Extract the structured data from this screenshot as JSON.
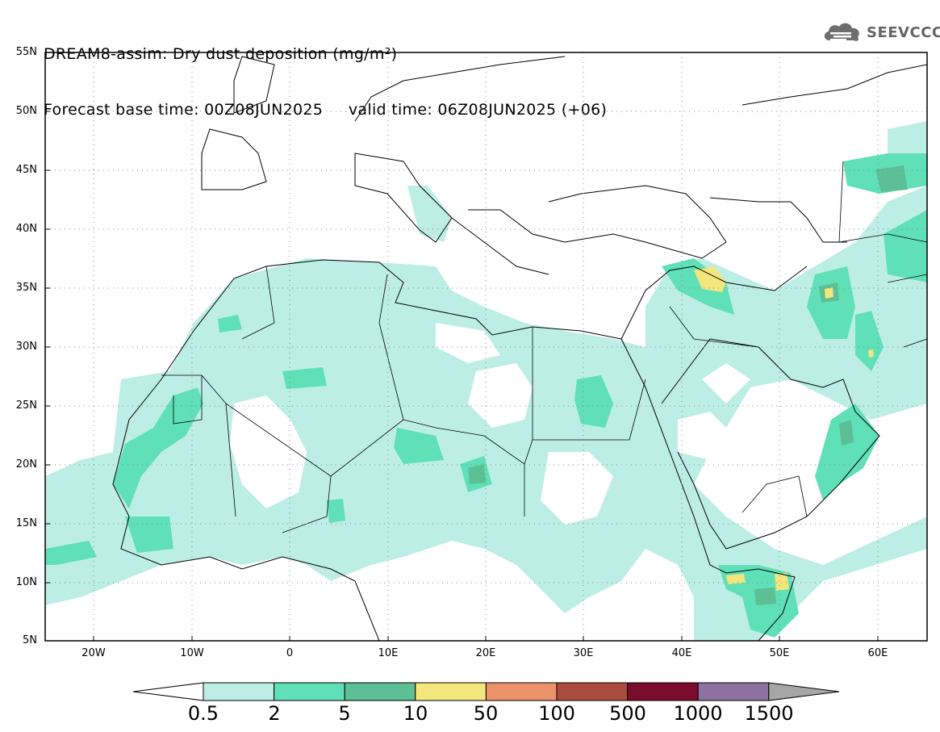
{
  "title": {
    "line1": "DREAM8-assim: Dry dust deposition (mg/m²)",
    "line2": "Forecast base time: 00Z08JUN2025     valid time: 06Z08JUN2025 (+06)"
  },
  "logo": {
    "text": "SEEVCCC",
    "icon": "cloud-icon"
  },
  "map": {
    "lon_range": [
      -25,
      65
    ],
    "lat_range": [
      5,
      55
    ],
    "lat_ticks": [
      "55N",
      "50N",
      "45N",
      "40N",
      "35N",
      "30N",
      "25N",
      "20N",
      "15N",
      "10N",
      "5N"
    ],
    "lon_ticks": [
      "20W",
      "10W",
      "0",
      "10E",
      "20E",
      "30E",
      "40E",
      "50E",
      "60E"
    ],
    "gridlines": "dotted"
  },
  "colorbar": {
    "labels": [
      "0.5",
      "2",
      "5",
      "10",
      "50",
      "100",
      "500",
      "1000",
      "1500"
    ],
    "colors": [
      "#ffffff",
      "#bdeee6",
      "#5fe0b7",
      "#5cbf96",
      "#f2e67c",
      "#eb926b",
      "#ac4c3e",
      "#7b0c2b",
      "#8e71a3",
      "#a6a6a6"
    ]
  }
}
